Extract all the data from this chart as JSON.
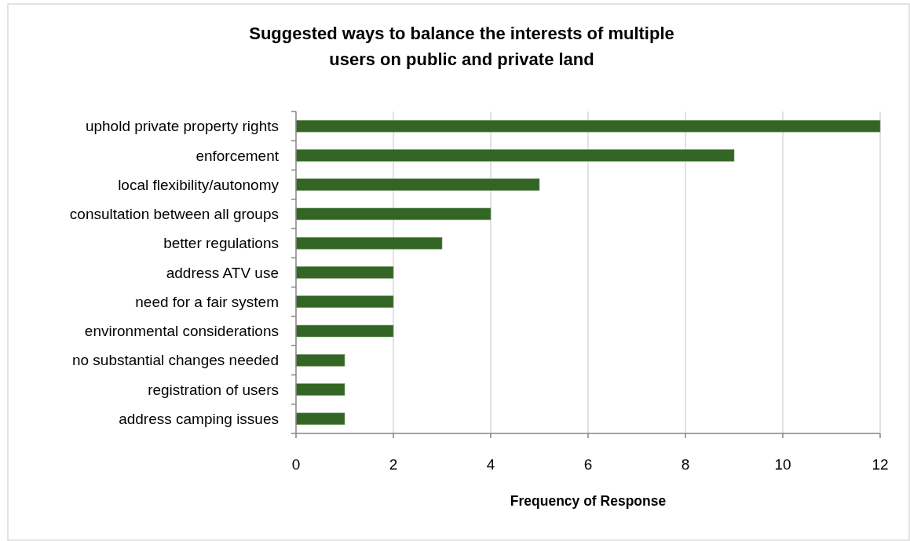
{
  "chart_data": {
    "type": "bar",
    "orientation": "horizontal",
    "title": "Suggested ways to balance the interests of multiple users on public and private land",
    "xlabel": "Frequency of Response",
    "categories": [
      "uphold private property rights",
      "enforcement",
      "local flexibility/autonomy",
      "consultation between all groups",
      "better regulations",
      "address ATV use",
      "need for a fair system",
      "environmental considerations",
      "no substantial changes needed",
      "registration of users",
      "address camping issues"
    ],
    "values": [
      12,
      9,
      5,
      4,
      3,
      2,
      2,
      2,
      1,
      1,
      1
    ],
    "color": "#336624",
    "xlim": [
      0,
      12
    ],
    "xticks": [
      0,
      2,
      4,
      6,
      8,
      10,
      12
    ],
    "grid": "x"
  }
}
